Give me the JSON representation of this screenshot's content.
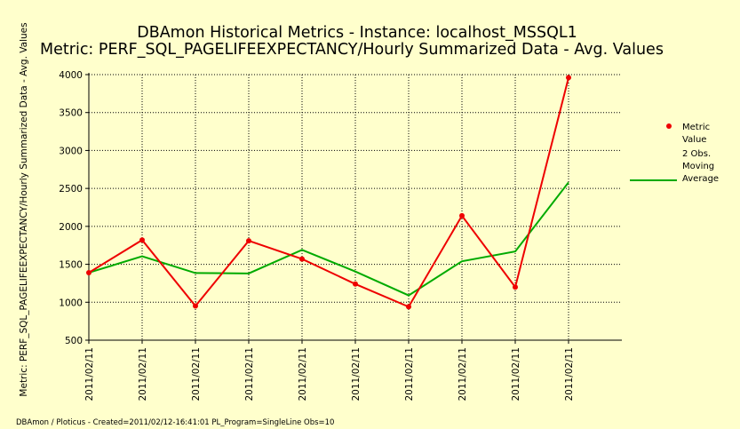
{
  "chart_data": {
    "type": "line",
    "title": "DBAmon Historical Metrics - Instance: localhost_MSSQL1",
    "subtitle": "Metric: PERF_SQL_PAGELIFEEXPECTANCY/Hourly Summarized Data - Avg. Values",
    "ylabel": "Metric: PERF_SQL_PAGELIFEEXPECTANCY/Hourly Summarized Data - Avg. Values",
    "xlabel": "",
    "categories": [
      "2011/02/11",
      "2011/02/11",
      "2011/02/11",
      "2011/02/11",
      "2011/02/11",
      "2011/02/11",
      "2011/02/11",
      "2011/02/11",
      "2011/02/11",
      "2011/02/11"
    ],
    "ylim": [
      500,
      4000
    ],
    "yticks": [
      500,
      1000,
      1500,
      2000,
      2500,
      3000,
      3500,
      4000
    ],
    "ytick_labels": [
      "500",
      "1000",
      "1500",
      "2000",
      "2500",
      "3000",
      "3500",
      "4000"
    ],
    "grid": true,
    "legend_position": "right",
    "series": [
      {
        "name": "Metric Value",
        "legend_lines": [
          "Metric",
          "Value"
        ],
        "color": "#ee0000",
        "markers": true,
        "values": [
          1390,
          1820,
          950,
          1810,
          1570,
          1240,
          940,
          2140,
          1200,
          3960
        ]
      },
      {
        "name": "2 Obs. Moving Average",
        "legend_lines": [
          "2 Obs.",
          "Moving",
          "Average"
        ],
        "color": "#00aa00",
        "markers": false,
        "values": [
          1390,
          1605,
          1385,
          1380,
          1690,
          1405,
          1090,
          1540,
          1670,
          2580
        ]
      }
    ]
  },
  "footer": "DBAmon / Ploticus - Created=2011/02/12-16:41:01 PL_Program=SingleLine Obs=10"
}
